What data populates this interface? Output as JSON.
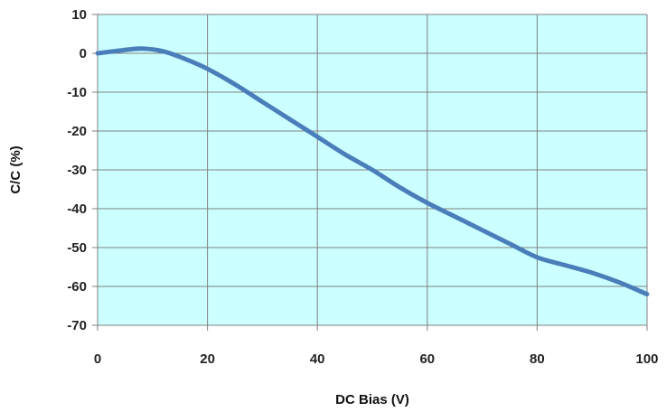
{
  "chart_data": {
    "type": "line",
    "xlabel": "DC Bias  (V)",
    "ylabel": "C/C (%)",
    "xlim": [
      0,
      100
    ],
    "ylim": [
      -70,
      10
    ],
    "x_ticks": [
      0,
      20,
      40,
      60,
      80,
      100
    ],
    "y_ticks": [
      10,
      0,
      -10,
      -20,
      -30,
      -40,
      -50,
      -60,
      -70
    ],
    "grid": true,
    "legend": "none",
    "plot_background": "#ccffff",
    "grid_color": "#808080",
    "line_color": "#4a7ebb",
    "series": [
      {
        "x": [
          0,
          4,
          8,
          12,
          16,
          20,
          25,
          30,
          35,
          40,
          45,
          50,
          55,
          60,
          65,
          70,
          75,
          80,
          85,
          90,
          95,
          100
        ],
        "y": [
          0,
          0.7,
          1.2,
          0.5,
          -1.5,
          -4,
          -8,
          -12.5,
          -17,
          -21.5,
          -26,
          -30,
          -34.5,
          -38.5,
          -42,
          -45.5,
          -49,
          -52.5,
          -54.5,
          -56.5,
          -59,
          -62
        ]
      }
    ]
  }
}
